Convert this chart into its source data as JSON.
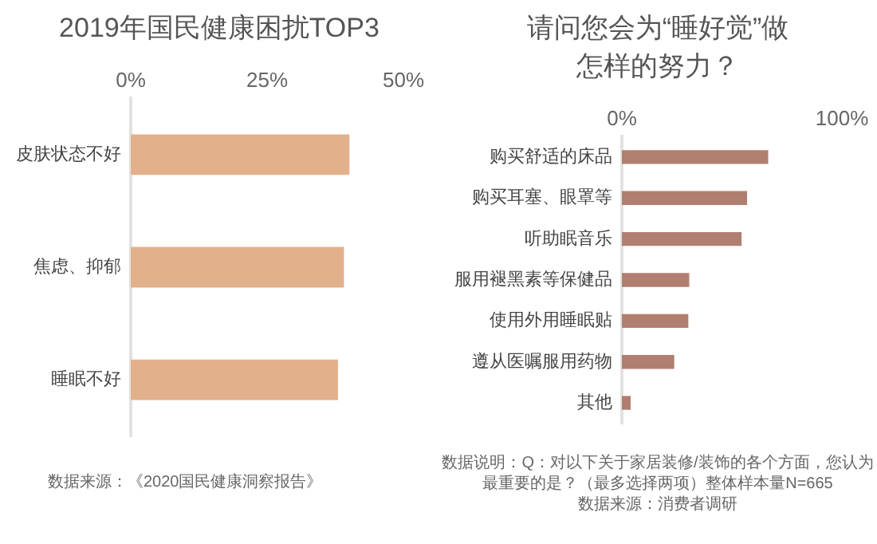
{
  "chart_data": [
    {
      "type": "bar",
      "orientation": "horizontal",
      "title": "2019年国民健康困扰TOP3",
      "categories": [
        "皮肤状态不好",
        "焦虑、抑郁",
        "睡眠不好"
      ],
      "values": [
        40.1,
        39.1,
        38.0
      ],
      "color": "#e3b08c",
      "xlim": [
        0,
        50
      ],
      "xticks": [
        {
          "value": 0,
          "label": "0%"
        },
        {
          "value": 25,
          "label": "25%"
        },
        {
          "value": 50,
          "label": "50%"
        }
      ],
      "grid": false,
      "legend": false,
      "annotations": [
        "数据来源：《2020国民健康洞察报告》"
      ]
    },
    {
      "type": "bar",
      "orientation": "horizontal",
      "title": "请问您会为“睡好觉”做怎样的努力？",
      "categories": [
        "购买舒适的床品",
        "购买耳塞、眼罩等",
        "听助眠音乐",
        "服用褪黑素等保健品",
        "使用外用睡眠贴",
        "遵从医嘱服用药物",
        "其他"
      ],
      "values": [
        66.5,
        56.9,
        54.4,
        30.6,
        30.2,
        23.8,
        4.0
      ],
      "color": "#b07f70",
      "xlim": [
        0,
        100
      ],
      "xticks": [
        {
          "value": 0,
          "label": "0%"
        },
        {
          "value": 100,
          "label": "100%"
        }
      ],
      "grid": false,
      "legend": false,
      "annotations": [
        "数据说明：Q：对以下关于家居装修/装饰的各个方面，您认为最重要的是？（最多选择两项）整体样本量N=665",
        "数据来源：消费者调研"
      ]
    }
  ]
}
